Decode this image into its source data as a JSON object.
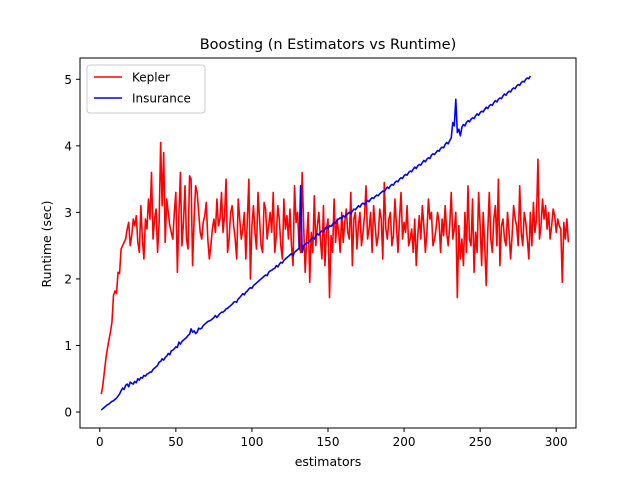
{
  "chart_data": {
    "type": "line",
    "title": "Boosting (n Estimators vs Runtime)",
    "xlabel": "estimators",
    "ylabel": "Runtime (sec)",
    "xlim": [
      -13,
      313
    ],
    "ylim": [
      -0.24,
      5.32
    ],
    "xticks": [
      0,
      50,
      100,
      150,
      200,
      250,
      300
    ],
    "yticks": [
      0,
      1,
      2,
      3,
      4,
      5
    ],
    "grid": false,
    "legend_position": "top-left",
    "series": [
      {
        "name": "Kepler",
        "color": "#ff0000",
        "x_start": 1,
        "x_step": 1,
        "values": [
          0.27,
          0.4,
          0.6,
          0.8,
          0.95,
          1.08,
          1.2,
          1.35,
          1.75,
          1.82,
          1.78,
          2.1,
          2.08,
          2.45,
          2.5,
          2.55,
          2.6,
          2.75,
          2.85,
          2.5,
          2.65,
          2.9,
          2.8,
          2.95,
          2.55,
          2.4,
          3.1,
          2.6,
          2.3,
          2.9,
          2.75,
          3.2,
          2.9,
          3.6,
          2.6,
          2.9,
          3.05,
          2.4,
          2.85,
          4.05,
          3.1,
          3.9,
          2.55,
          3.2,
          3.0,
          2.8,
          2.7,
          2.6,
          3.0,
          3.3,
          2.1,
          2.95,
          3.6,
          2.5,
          2.85,
          3.4,
          2.6,
          2.45,
          3.55,
          3.5,
          2.2,
          2.9,
          3.4,
          3.3,
          3.0,
          2.7,
          2.6,
          2.85,
          2.95,
          3.15,
          2.6,
          2.3,
          2.5,
          2.75,
          2.9,
          2.7,
          3.2,
          2.8,
          2.9,
          3.3,
          2.7,
          2.95,
          3.5,
          2.4,
          2.6,
          3.0,
          3.1,
          2.8,
          2.6,
          2.3,
          3.2,
          2.9,
          2.6,
          2.75,
          3.0,
          2.3,
          2.9,
          3.5,
          2.0,
          2.8,
          3.1,
          2.7,
          2.45,
          3.3,
          2.9,
          2.5,
          2.4,
          3.15,
          3.05,
          2.6,
          2.8,
          3.0,
          2.7,
          3.3,
          2.4,
          2.65,
          3.1,
          2.9,
          2.5,
          2.3,
          3.2,
          2.75,
          2.95,
          2.6,
          3.05,
          2.5,
          2.2,
          3.4,
          2.85,
          3.0,
          2.5,
          2.4,
          3.6,
          2.8,
          2.1,
          2.6,
          3.0,
          1.95,
          2.7,
          2.4,
          3.25,
          2.5,
          2.8,
          3.0,
          2.6,
          2.3,
          3.1,
          2.2,
          2.75,
          2.9,
          1.72,
          2.65,
          2.4,
          3.2,
          2.55,
          2.9,
          2.7,
          2.4,
          3.0,
          2.55,
          2.85,
          3.05,
          2.7,
          2.6,
          3.3,
          2.2,
          2.9,
          3.0,
          2.45,
          2.8,
          3.0,
          2.5,
          2.7,
          2.95,
          3.4,
          2.6,
          2.75,
          3.0,
          2.4,
          3.1,
          2.8,
          2.5,
          2.65,
          3.05,
          2.9,
          2.3,
          3.45,
          2.75,
          2.6,
          2.9,
          3.0,
          2.5,
          2.65,
          3.2,
          2.8,
          2.4,
          2.9,
          3.3,
          2.6,
          2.85,
          2.7,
          3.1,
          2.5,
          2.6,
          2.75,
          2.4,
          2.9,
          2.2,
          2.65,
          2.95,
          2.6,
          3.1,
          2.8,
          2.4,
          2.7,
          3.2,
          2.9,
          3.0,
          2.5,
          2.6,
          2.75,
          3.0,
          2.85,
          2.4,
          2.9,
          2.65,
          3.1,
          2.7,
          2.5,
          2.8,
          3.3,
          2.6,
          2.75,
          3.0,
          1.72,
          2.8,
          2.3,
          2.6,
          2.2,
          3.0,
          2.4,
          3.4,
          2.6,
          2.5,
          3.2,
          2.1,
          2.7,
          2.4,
          3.3,
          2.8,
          2.2,
          3.0,
          2.5,
          1.9,
          2.7,
          3.3,
          2.6,
          2.4,
          2.9,
          3.1,
          2.5,
          3.5,
          2.2,
          2.8,
          2.9,
          2.6,
          2.5,
          3.0,
          2.7,
          2.3,
          2.65,
          3.1,
          2.9,
          2.8,
          2.5,
          3.4,
          2.7,
          2.5,
          3.0,
          2.85,
          2.6,
          2.3,
          3.0,
          2.5,
          3.15,
          2.7,
          2.9,
          3.8,
          2.6,
          2.8,
          3.2,
          2.9,
          3.1,
          2.75,
          3.0,
          2.6,
          2.8,
          3.05,
          2.95,
          2.7,
          2.9,
          2.8,
          2.75,
          1.95,
          2.85,
          2.6,
          2.9,
          2.55
        ]
      },
      {
        "name": "Insurance",
        "color": "#0000ff",
        "x_start": 1,
        "x_step": 1,
        "values": [
          0.03,
          0.05,
          0.07,
          0.09,
          0.11,
          0.12,
          0.14,
          0.16,
          0.17,
          0.19,
          0.21,
          0.24,
          0.27,
          0.32,
          0.36,
          0.34,
          0.4,
          0.42,
          0.38,
          0.45,
          0.43,
          0.42,
          0.46,
          0.44,
          0.5,
          0.48,
          0.52,
          0.51,
          0.55,
          0.54,
          0.57,
          0.58,
          0.6,
          0.6,
          0.64,
          0.66,
          0.68,
          0.7,
          0.75,
          0.76,
          0.8,
          0.78,
          0.82,
          0.84,
          0.88,
          0.86,
          0.92,
          0.93,
          0.95,
          0.98,
          0.97,
          1.05,
          1.02,
          1.06,
          1.08,
          1.1,
          1.12,
          1.15,
          1.17,
          1.25,
          1.2,
          1.22,
          1.18,
          1.2,
          1.26,
          1.25,
          1.26,
          1.3,
          1.32,
          1.34,
          1.36,
          1.37,
          1.38,
          1.4,
          1.42,
          1.45,
          1.42,
          1.45,
          1.48,
          1.5,
          1.5,
          1.52,
          1.55,
          1.56,
          1.58,
          1.6,
          1.62,
          1.65,
          1.66,
          1.65,
          1.7,
          1.72,
          1.75,
          1.78,
          1.76,
          1.8,
          1.82,
          1.85,
          1.87,
          1.86,
          1.9,
          1.92,
          1.94,
          1.96,
          1.98,
          2.0,
          2.02,
          2.04,
          2.06,
          2.05,
          2.1,
          2.12,
          2.13,
          2.15,
          2.16,
          2.2,
          2.18,
          2.22,
          2.25,
          2.24,
          2.28,
          2.3,
          2.32,
          2.34,
          2.36,
          2.38,
          2.35,
          2.4,
          2.42,
          2.44,
          2.46,
          3.4,
          2.4,
          2.5,
          2.52,
          2.55,
          2.54,
          2.57,
          2.6,
          2.62,
          2.6,
          2.65,
          2.68,
          2.66,
          2.7,
          2.72,
          2.71,
          2.75,
          2.78,
          2.76,
          2.8,
          2.79,
          2.82,
          2.85,
          2.84,
          2.88,
          2.9,
          2.92,
          2.9,
          2.95,
          2.93,
          2.96,
          2.98,
          3.0,
          2.98,
          3.02,
          3.05,
          3.04,
          3.07,
          3.1,
          3.08,
          3.12,
          3.14,
          3.12,
          3.15,
          3.18,
          3.16,
          3.2,
          3.22,
          3.21,
          3.24,
          3.26,
          3.25,
          3.28,
          3.3,
          3.32,
          3.31,
          3.35,
          3.38,
          3.36,
          3.4,
          3.42,
          3.41,
          3.45,
          3.47,
          3.46,
          3.5,
          3.52,
          3.51,
          3.55,
          3.57,
          3.56,
          3.6,
          3.62,
          3.61,
          3.65,
          3.68,
          3.66,
          3.7,
          3.72,
          3.71,
          3.75,
          3.78,
          3.76,
          3.8,
          3.82,
          3.81,
          3.86,
          3.88,
          3.87,
          3.9,
          3.93,
          3.92,
          3.96,
          3.98,
          3.97,
          4.02,
          4.05,
          4.03,
          4.08,
          4.12,
          4.35,
          4.3,
          4.7,
          4.2,
          4.25,
          4.15,
          4.28,
          4.32,
          4.3,
          4.35,
          4.38,
          4.36,
          4.4,
          4.42,
          4.41,
          4.45,
          4.48,
          4.46,
          4.5,
          4.52,
          4.51,
          4.55,
          4.58,
          4.56,
          4.6,
          4.62,
          4.61,
          4.65,
          4.68,
          4.66,
          4.7,
          4.72,
          4.71,
          4.75,
          4.78,
          4.76,
          4.8,
          4.82,
          4.81,
          4.85,
          4.87,
          4.86,
          4.9,
          4.92,
          4.91,
          4.95,
          4.97,
          4.96,
          5.0,
          5.02,
          5.01,
          5.05
        ]
      }
    ]
  }
}
